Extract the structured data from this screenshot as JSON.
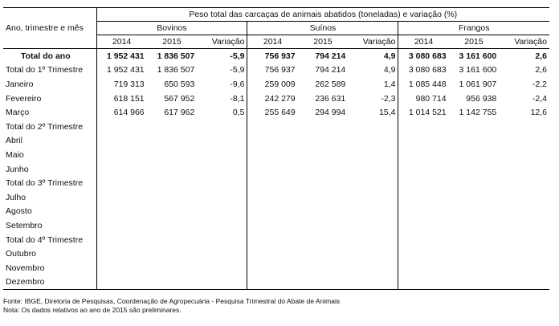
{
  "header": {
    "row_label": "Ano, trimestre e mês",
    "title": "Peso total das carcaças de animais abatidos (toneladas) e variação (%)",
    "groups": [
      {
        "name": "Bovinos",
        "columns": [
          "2014",
          "2015",
          "Variação"
        ]
      },
      {
        "name": "Suínos",
        "columns": [
          "2014",
          "2015",
          "Variação"
        ]
      },
      {
        "name": "Frangos",
        "columns": [
          "2014",
          "2015",
          "Variação"
        ]
      }
    ]
  },
  "rows": [
    {
      "label": "Total do ano",
      "values": [
        "1 952 431",
        "1 836 507",
        "-5,9",
        "756 937",
        "794 214",
        "4,9",
        "3 080 683",
        "3 161 600",
        "2,6"
      ]
    },
    {
      "label": "Total do 1º Trimestre",
      "values": [
        "1 952 431",
        "1 836 507",
        "-5,9",
        "756 937",
        "794 214",
        "4,9",
        "3 080 683",
        "3 161 600",
        "2,6"
      ]
    },
    {
      "label": "Janeiro",
      "values": [
        "719 313",
        "650 593",
        "-9,6",
        "259 009",
        "262 589",
        "1,4",
        "1 085 448",
        "1 061 907",
        "-2,2"
      ]
    },
    {
      "label": "Fevereiro",
      "values": [
        "618 151",
        "567 952",
        "-8,1",
        "242 279",
        "236 631",
        "-2,3",
        "980 714",
        "956 938",
        "-2,4"
      ]
    },
    {
      "label": "Março",
      "values": [
        "614 966",
        "617 962",
        "0,5",
        "255 649",
        "294 994",
        "15,4",
        "1 014 521",
        "1 142 755",
        "12,6"
      ]
    },
    {
      "label": "Total do 2º Trimestre"
    },
    {
      "label": "Abril"
    },
    {
      "label": "Maio"
    },
    {
      "label": "Junho"
    },
    {
      "label": "Total do 3º Trimestre"
    },
    {
      "label": "Julho"
    },
    {
      "label": "Agosto"
    },
    {
      "label": "Setembro"
    },
    {
      "label": "Total do 4º Trimestre"
    },
    {
      "label": "Outubro"
    },
    {
      "label": "Novembro"
    },
    {
      "label": "Dezembro"
    }
  ],
  "footer": {
    "source": "Fonte: IBGE, Diretoria de Pesquisas, Coordenação de Agropecuária - Pesquisa Trimestral do Abate de Animais",
    "note": "Nota: Os dados relativos ao ano de 2015 são preliminares."
  }
}
